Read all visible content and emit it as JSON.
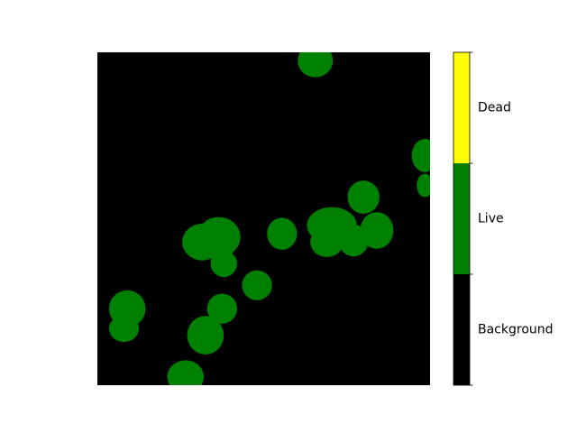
{
  "chart_data": {
    "type": "heatmap",
    "title": "",
    "xlabel": "",
    "ylabel": "",
    "axes_visible": false,
    "image": {
      "description_classes": [
        "Background",
        "Live"
      ],
      "background_class": "Background"
    },
    "blobs": [
      {
        "class": "Live",
        "cx": 0.655,
        "cy": 0.025,
        "rx": 0.053,
        "ry": 0.05
      },
      {
        "class": "Live",
        "cx": 0.985,
        "cy": 0.31,
        "rx": 0.04,
        "ry": 0.05
      },
      {
        "class": "Live",
        "cx": 0.985,
        "cy": 0.4,
        "rx": 0.025,
        "ry": 0.035
      },
      {
        "class": "Live",
        "cx": 0.8,
        "cy": 0.435,
        "rx": 0.048,
        "ry": 0.05
      },
      {
        "class": "Live",
        "cx": 0.365,
        "cy": 0.555,
        "rx": 0.065,
        "ry": 0.06
      },
      {
        "class": "Live",
        "cx": 0.38,
        "cy": 0.635,
        "rx": 0.04,
        "ry": 0.04
      },
      {
        "class": "Live",
        "cx": 0.315,
        "cy": 0.57,
        "rx": 0.06,
        "ry": 0.055
      },
      {
        "class": "Live",
        "cx": 0.375,
        "cy": 0.77,
        "rx": 0.045,
        "ry": 0.045
      },
      {
        "class": "Live",
        "cx": 0.48,
        "cy": 0.7,
        "rx": 0.045,
        "ry": 0.045
      },
      {
        "class": "Live",
        "cx": 0.555,
        "cy": 0.545,
        "rx": 0.045,
        "ry": 0.048
      },
      {
        "class": "Live",
        "cx": 0.705,
        "cy": 0.52,
        "rx": 0.075,
        "ry": 0.055
      },
      {
        "class": "Live",
        "cx": 0.69,
        "cy": 0.57,
        "rx": 0.05,
        "ry": 0.045
      },
      {
        "class": "Live",
        "cx": 0.77,
        "cy": 0.565,
        "rx": 0.045,
        "ry": 0.048
      },
      {
        "class": "Live",
        "cx": 0.84,
        "cy": 0.535,
        "rx": 0.05,
        "ry": 0.055
      },
      {
        "class": "Live",
        "cx": 0.09,
        "cy": 0.77,
        "rx": 0.055,
        "ry": 0.055
      },
      {
        "class": "Live",
        "cx": 0.08,
        "cy": 0.83,
        "rx": 0.045,
        "ry": 0.04
      },
      {
        "class": "Live",
        "cx": 0.325,
        "cy": 0.85,
        "rx": 0.055,
        "ry": 0.058
      },
      {
        "class": "Live",
        "cx": 0.265,
        "cy": 0.975,
        "rx": 0.055,
        "ry": 0.05
      }
    ],
    "colorbar": {
      "classes": [
        {
          "label": "Background",
          "color": "#000000"
        },
        {
          "label": "Live",
          "color": "#008000"
        },
        {
          "label": "Dead",
          "color": "#ffff00"
        }
      ]
    }
  }
}
